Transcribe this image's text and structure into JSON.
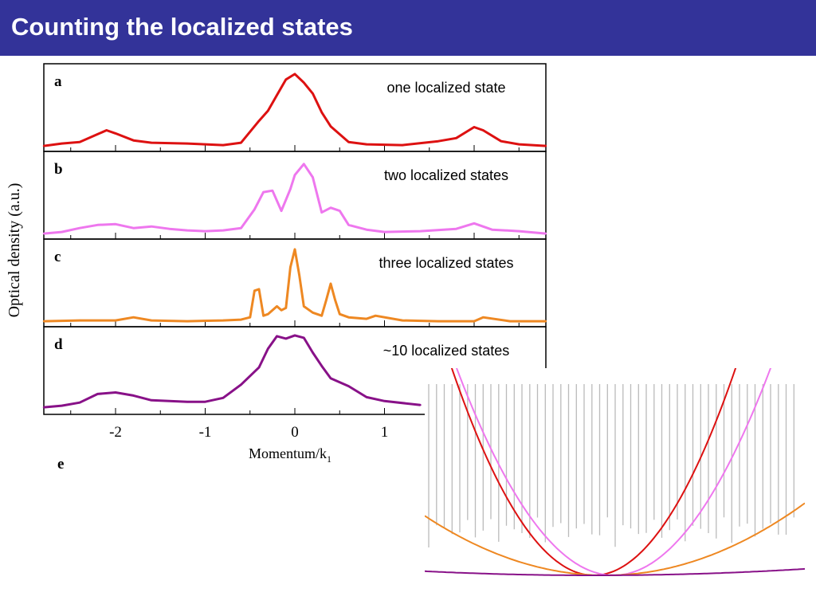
{
  "slide": {
    "title": "Counting the localized states"
  },
  "chart_data": [
    {
      "type": "line",
      "panel_label": "a",
      "annotation": "one localized state",
      "color": "#dd1111",
      "x": [
        -2.8,
        -2.6,
        -2.4,
        -2.2,
        -2.1,
        -2.0,
        -1.8,
        -1.6,
        -1.2,
        -1.0,
        -0.8,
        -0.6,
        -0.4,
        -0.3,
        -0.2,
        -0.1,
        0.0,
        0.1,
        0.2,
        0.3,
        0.4,
        0.6,
        0.8,
        1.2,
        1.6,
        1.8,
        2.0,
        2.1,
        2.3,
        2.5,
        2.8
      ],
      "y": [
        0.03,
        0.06,
        0.08,
        0.18,
        0.23,
        0.19,
        0.1,
        0.07,
        0.06,
        0.05,
        0.04,
        0.07,
        0.35,
        0.48,
        0.68,
        0.88,
        0.95,
        0.84,
        0.7,
        0.46,
        0.28,
        0.08,
        0.05,
        0.04,
        0.09,
        0.13,
        0.27,
        0.23,
        0.09,
        0.05,
        0.03
      ]
    },
    {
      "type": "line",
      "panel_label": "b",
      "annotation": "two localized states",
      "color": "#ee77ee",
      "x": [
        -2.8,
        -2.6,
        -2.4,
        -2.2,
        -2.0,
        -1.8,
        -1.6,
        -1.4,
        -1.2,
        -1.0,
        -0.8,
        -0.6,
        -0.45,
        -0.35,
        -0.25,
        -0.15,
        -0.05,
        0.0,
        0.1,
        0.2,
        0.3,
        0.4,
        0.5,
        0.6,
        0.8,
        1.0,
        1.4,
        1.8,
        2.0,
        2.2,
        2.5,
        2.8
      ],
      "y": [
        0.03,
        0.05,
        0.1,
        0.14,
        0.15,
        0.1,
        0.12,
        0.09,
        0.07,
        0.06,
        0.07,
        0.1,
        0.34,
        0.56,
        0.58,
        0.32,
        0.6,
        0.78,
        0.92,
        0.75,
        0.3,
        0.36,
        0.32,
        0.14,
        0.08,
        0.05,
        0.06,
        0.09,
        0.16,
        0.08,
        0.06,
        0.03
      ]
    },
    {
      "type": "line",
      "panel_label": "c",
      "annotation": "three localized states",
      "color": "#ee8822",
      "x": [
        -2.8,
        -2.4,
        -2.0,
        -1.8,
        -1.6,
        -1.2,
        -0.8,
        -0.6,
        -0.5,
        -0.45,
        -0.4,
        -0.35,
        -0.3,
        -0.2,
        -0.15,
        -0.1,
        -0.05,
        0.0,
        0.05,
        0.1,
        0.2,
        0.3,
        0.35,
        0.4,
        0.45,
        0.5,
        0.6,
        0.8,
        0.9,
        1.2,
        1.6,
        2.0,
        2.1,
        2.4,
        2.8
      ],
      "y": [
        0.03,
        0.04,
        0.04,
        0.08,
        0.04,
        0.03,
        0.04,
        0.05,
        0.08,
        0.42,
        0.44,
        0.1,
        0.12,
        0.22,
        0.17,
        0.2,
        0.72,
        0.95,
        0.62,
        0.22,
        0.14,
        0.1,
        0.3,
        0.51,
        0.3,
        0.12,
        0.08,
        0.06,
        0.1,
        0.04,
        0.03,
        0.03,
        0.08,
        0.03,
        0.03
      ]
    },
    {
      "type": "line",
      "panel_label": "d",
      "annotation": "~10 localized states",
      "color": "#881188",
      "x": [
        -2.8,
        -2.6,
        -2.4,
        -2.2,
        -2.0,
        -1.8,
        -1.6,
        -1.2,
        -1.0,
        -0.8,
        -0.6,
        -0.4,
        -0.3,
        -0.2,
        -0.1,
        0.0,
        0.1,
        0.2,
        0.3,
        0.4,
        0.6,
        0.8,
        1.0,
        1.4
      ],
      "y": [
        0.05,
        0.07,
        0.11,
        0.22,
        0.24,
        0.2,
        0.14,
        0.12,
        0.12,
        0.17,
        0.34,
        0.56,
        0.8,
        0.96,
        0.93,
        0.97,
        0.94,
        0.75,
        0.58,
        0.42,
        0.32,
        0.18,
        0.13,
        0.08
      ]
    }
  ],
  "axes": {
    "xlabel": "Momentum/k",
    "xlabel_subscript": "1",
    "ylabel": "Optical density (a.u.)",
    "xlim": [
      -2.8,
      2.8
    ],
    "ylim": [
      0,
      1
    ],
    "xticks": [
      "-2",
      "-1",
      "0",
      "1"
    ]
  },
  "panel_e": {
    "label": "e",
    "lines": [
      {
        "color": "#dd1111"
      },
      {
        "color": "#ee77ee"
      },
      {
        "color": "#ee8822"
      },
      {
        "color": "#881188"
      }
    ]
  }
}
